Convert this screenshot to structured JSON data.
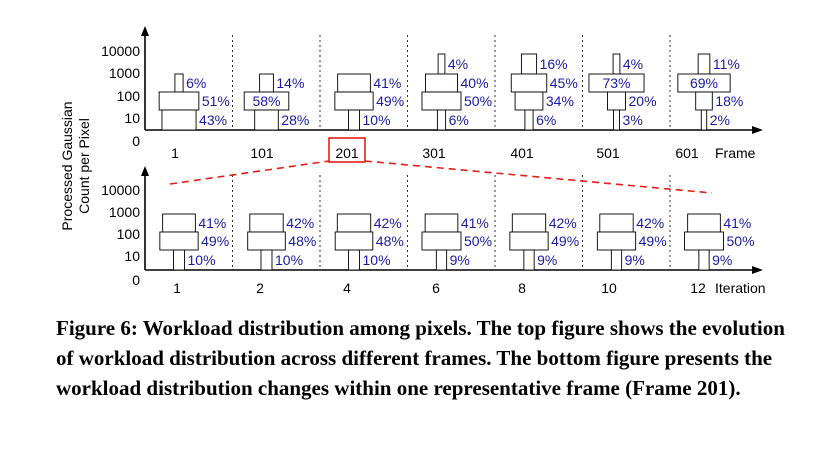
{
  "chart_data": {
    "type": "violin-bar",
    "ylabel_line1": "Processed Gaussian",
    "ylabel_line2": "Count per Pixel",
    "y_ticks": [
      "10000",
      "1000",
      "100",
      "10",
      "0"
    ],
    "y_scale": "log",
    "grid": "vertical dashed separators between categories",
    "highlight": {
      "label": "201",
      "zoom_link": "bottom panel"
    },
    "panels": [
      {
        "name": "top",
        "xlabel": "Frame",
        "categories": [
          "1",
          "101",
          "201",
          "301",
          "401",
          "501",
          "601"
        ],
        "bins": [
          "1000-10000",
          "100-1000",
          "10-100",
          "0-10"
        ],
        "percentages": [
          [
            null,
            "6%",
            "51%",
            "43%"
          ],
          [
            null,
            "14%",
            "58%",
            "28%"
          ],
          [
            null,
            "41%",
            "49%",
            "10%"
          ],
          [
            "4%",
            "40%",
            "50%",
            "6%"
          ],
          [
            "16%",
            "45%",
            "34%",
            "6%"
          ],
          [
            "4%",
            "73%",
            "20%",
            "3%"
          ],
          [
            "11%",
            "69%",
            "18%",
            "2%"
          ]
        ]
      },
      {
        "name": "bottom",
        "xlabel": "Iteration",
        "categories": [
          "1",
          "2",
          "4",
          "6",
          "8",
          "10",
          "12"
        ],
        "bins": [
          "1000-10000",
          "100-1000",
          "10-100",
          "0-10"
        ],
        "percentages": [
          [
            null,
            "41%",
            "49%",
            "10%"
          ],
          [
            null,
            "42%",
            "48%",
            "10%"
          ],
          [
            null,
            "42%",
            "48%",
            "10%"
          ],
          [
            null,
            "41%",
            "50%",
            "9%"
          ],
          [
            null,
            "42%",
            "49%",
            "9%"
          ],
          [
            null,
            "42%",
            "49%",
            "9%"
          ],
          [
            null,
            "41%",
            "50%",
            "9%"
          ]
        ]
      }
    ]
  },
  "caption": "Figure 6: Workload distribution among pixels. The top figure shows the evolution of workload distribution across different frames. The bottom figure presents the workload distribution changes within one representative frame (Frame 201).",
  "colors": {
    "axis": "#000000",
    "percent_text": "#1a1aa6",
    "highlight_box": "#e0201a",
    "zoom_line": "#e0201a"
  }
}
